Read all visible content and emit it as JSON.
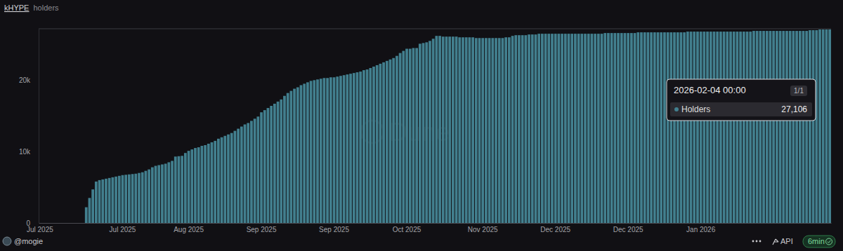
{
  "chart_data": {
    "type": "bar",
    "title": "kHYPE",
    "subtitle": "holders",
    "watermark": "Dune",
    "color": "#427f8e",
    "grid": false,
    "ylim": [
      0,
      27200
    ],
    "yticks": [
      0,
      {
        "value": 10000,
        "label": "10k"
      },
      {
        "value": 20000,
        "label": "20k"
      }
    ],
    "categories": [
      "Jul 2025",
      null,
      null,
      null,
      null,
      null,
      null,
      null,
      null,
      null,
      null,
      null,
      null,
      null,
      null,
      null,
      null,
      null,
      null,
      null,
      null,
      null,
      null,
      null,
      null,
      "Jul 2025",
      null,
      null,
      null,
      null,
      null,
      null,
      null,
      null,
      null,
      null,
      null,
      null,
      null,
      null,
      null,
      null,
      null,
      null,
      null,
      "Aug 2025",
      null,
      null,
      null,
      null,
      null,
      null,
      null,
      null,
      null,
      null,
      null,
      null,
      null,
      null,
      null,
      null,
      null,
      null,
      null,
      null,
      null,
      "Sep 2025",
      null,
      null,
      null,
      null,
      null,
      null,
      null,
      null,
      null,
      null,
      null,
      null,
      null,
      null,
      null,
      null,
      null,
      null,
      null,
      null,
      null,
      "Sep 2025",
      null,
      null,
      null,
      null,
      null,
      null,
      null,
      null,
      null,
      null,
      null,
      null,
      null,
      null,
      null,
      null,
      null,
      null,
      null,
      null,
      null,
      "Oct 2025",
      null,
      null,
      null,
      null,
      null,
      null,
      null,
      null,
      null,
      null,
      null,
      null,
      null,
      null,
      null,
      null,
      null,
      null,
      null,
      null,
      null,
      null,
      "Nov 2025",
      null,
      null,
      null,
      null,
      null,
      null,
      null,
      null,
      null,
      null,
      null,
      null,
      null,
      null,
      null,
      null,
      null,
      null,
      null,
      null,
      null,
      "Dec 2025",
      null,
      null,
      null,
      null,
      null,
      null,
      null,
      null,
      null,
      null,
      null,
      null,
      null,
      null,
      null,
      null,
      null,
      null,
      null,
      null,
      null,
      "Dec 2025",
      null,
      null,
      null,
      null,
      null,
      null,
      null,
      null,
      null,
      null,
      null,
      null,
      null,
      null,
      null,
      null,
      null,
      null,
      null,
      null,
      null,
      "Jan 2026",
      null,
      null,
      null,
      null,
      null,
      null,
      null,
      null,
      null,
      null,
      null,
      null,
      null,
      null,
      null,
      null,
      null,
      null,
      null,
      null,
      null,
      null,
      null,
      null,
      null,
      null,
      null,
      null,
      null,
      null,
      null,
      null,
      null,
      null,
      null,
      null,
      null,
      null,
      null
    ],
    "values": [
      0,
      0,
      0,
      0,
      0,
      0,
      0,
      0,
      0,
      0,
      0,
      0,
      0,
      0,
      2200,
      3500,
      4700,
      5800,
      6000,
      6100,
      6200,
      6300,
      6400,
      6500,
      6600,
      6700,
      6750,
      6800,
      6850,
      6900,
      7000,
      7100,
      7300,
      7500,
      7800,
      8000,
      8100,
      8200,
      8300,
      8500,
      8700,
      9300,
      9350,
      9400,
      9800,
      10100,
      10300,
      10500,
      10600,
      10800,
      10900,
      11100,
      11300,
      11500,
      11800,
      12000,
      12200,
      12400,
      12600,
      12900,
      13200,
      13500,
      13800,
      14000,
      14300,
      14600,
      14900,
      15500,
      15800,
      16100,
      16400,
      16700,
      17000,
      17300,
      17800,
      18200,
      18500,
      18800,
      19000,
      19300,
      19500,
      19700,
      19900,
      20000,
      20100,
      20200,
      20300,
      20300,
      20400,
      20400,
      20500,
      20600,
      20700,
      20800,
      20900,
      21000,
      21100,
      21200,
      21400,
      21500,
      21700,
      21900,
      22100,
      22300,
      22500,
      22700,
      22900,
      23100,
      23400,
      23800,
      24100,
      24400,
      24400,
      24500,
      24500,
      25100,
      25200,
      25300,
      25500,
      25800,
      26200,
      26200,
      26100,
      26100,
      26100,
      26100,
      26100,
      26000,
      26000,
      26000,
      26000,
      26000,
      25900,
      25900,
      25900,
      25900,
      25900,
      25900,
      25900,
      25900,
      25900,
      26000,
      26000,
      26200,
      26300,
      26300,
      26300,
      26300,
      26400,
      26400,
      26400,
      26500,
      26500,
      26500,
      26500,
      26500,
      26500,
      26500,
      26500,
      26500,
      26500,
      26500,
      26500,
      26500,
      26500,
      26500,
      26500,
      26500,
      26500,
      26500,
      26500,
      26600,
      26600,
      26600,
      26600,
      26600,
      26600,
      26600,
      26600,
      26600,
      26600,
      26700,
      26700,
      26700,
      26700,
      26700,
      26700,
      26700,
      26700,
      26700,
      26700,
      26700,
      26700,
      26700,
      26700,
      26700,
      26800,
      26800,
      26800,
      26800,
      26800,
      26800,
      26800,
      26800,
      26800,
      26800,
      26800,
      26800,
      26800,
      26800,
      26800,
      26800,
      26800,
      26800,
      26800,
      26800,
      26900,
      26900,
      26900,
      26900,
      26900,
      26900,
      26900,
      26900,
      26900,
      26900,
      26900,
      26900,
      26900,
      26900,
      26900,
      26900,
      26900,
      27000,
      27000,
      27000,
      27100,
      27100,
      27100,
      27106
    ],
    "tooltip": {
      "date": "2026-02-04 00:00",
      "page": "1/1",
      "label": "Holders",
      "value_label": "27,106"
    },
    "footer": {
      "author": "@mogie",
      "items": [
        "API",
        "6min"
      ]
    }
  }
}
